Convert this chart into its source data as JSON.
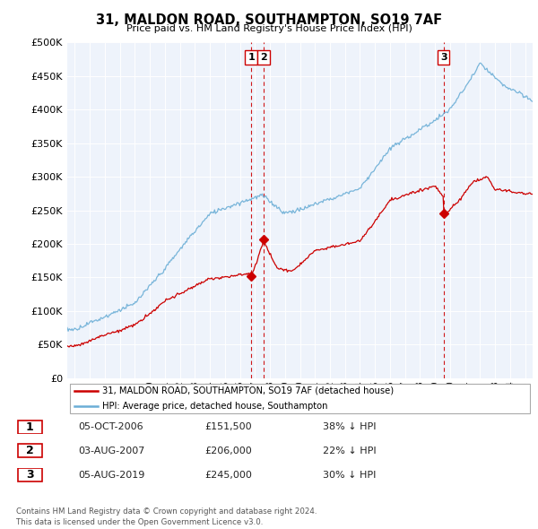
{
  "title": "31, MALDON ROAD, SOUTHAMPTON, SO19 7AF",
  "subtitle": "Price paid vs. HM Land Registry's House Price Index (HPI)",
  "ytick_values": [
    0,
    50000,
    100000,
    150000,
    200000,
    250000,
    300000,
    350000,
    400000,
    450000,
    500000
  ],
  "ylim": [
    0,
    500000
  ],
  "xlim_start": 1994.5,
  "xlim_end": 2025.5,
  "hpi_color": "#6baed6",
  "price_color": "#cc0000",
  "vline_color": "#cc0000",
  "highlight_bg": "#dce9f5",
  "transactions": [
    {
      "date": 2006.75,
      "price": 151500,
      "label": "1"
    },
    {
      "date": 2007.58,
      "price": 206000,
      "label": "2"
    },
    {
      "date": 2019.58,
      "price": 245000,
      "label": "3"
    }
  ],
  "legend_line1": "31, MALDON ROAD, SOUTHAMPTON, SO19 7AF (detached house)",
  "legend_line2": "HPI: Average price, detached house, Southampton",
  "table_rows": [
    [
      "1",
      "05-OCT-2006",
      "£151,500",
      "38% ↓ HPI"
    ],
    [
      "2",
      "03-AUG-2007",
      "£206,000",
      "22% ↓ HPI"
    ],
    [
      "3",
      "05-AUG-2019",
      "£245,000",
      "30% ↓ HPI"
    ]
  ],
  "footer": "Contains HM Land Registry data © Crown copyright and database right 2024.\nThis data is licensed under the Open Government Licence v3.0.",
  "plot_bg_color": "#eef3fb"
}
